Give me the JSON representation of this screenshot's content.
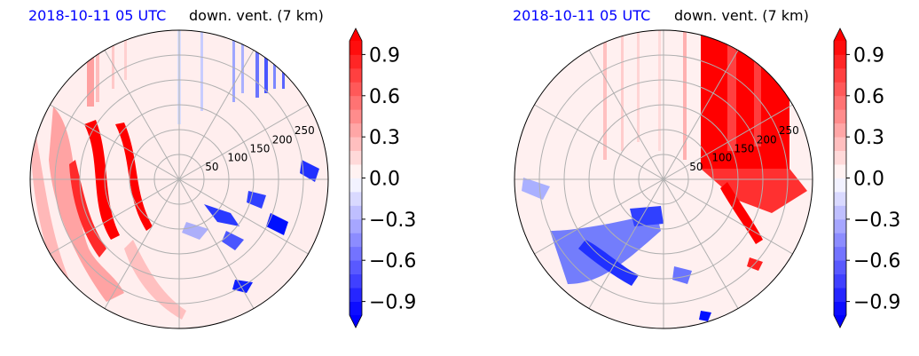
{
  "figure": {
    "panels": [
      {
        "date_title": "2018-10-11 05 UTC",
        "var_title": "down. vent. (7 km)"
      },
      {
        "date_title": "2018-10-11 05 UTC",
        "var_title": "down. vent. (7 km)"
      }
    ]
  },
  "colors": {
    "date_title": "#0000ff",
    "positive": "#ff0000",
    "negative": "#0000ff",
    "neutral": "#ffffff",
    "grid": "#b0b0b0",
    "frame": "#000000"
  },
  "chart_data": [
    {
      "type": "heatmap",
      "projection": "polar",
      "title_left": "2018-10-11 05 UTC",
      "title_right": "down. vent. (7 km)",
      "radial_ticks": [
        50,
        100,
        150,
        200,
        250
      ],
      "radial_lim": [
        0,
        300
      ],
      "angular_grid_deg": 30,
      "grid": true,
      "colorbar": {
        "ticks": [
          -0.9,
          -0.6,
          -0.3,
          0.0,
          0.3,
          0.6,
          0.9
        ],
        "tick_labels": [
          "−0.9",
          "−0.6",
          "−0.3",
          "0.0",
          "0.3",
          "0.6",
          "0.9"
        ],
        "range": [
          -1.0,
          1.0
        ],
        "extend": "both",
        "levels": 20,
        "cmap": "bwr"
      }
    },
    {
      "type": "heatmap",
      "projection": "polar",
      "title_left": "2018-10-11 05 UTC",
      "title_right": "down. vent. (7 km)",
      "radial_ticks": [
        50,
        100,
        150,
        200,
        250
      ],
      "radial_lim": [
        0,
        300
      ],
      "angular_grid_deg": 30,
      "grid": true,
      "colorbar": {
        "ticks": [
          -0.9,
          -0.6,
          -0.3,
          0.0,
          0.3,
          0.6,
          0.9
        ],
        "tick_labels": [
          "−0.9",
          "−0.6",
          "−0.3",
          "0.0",
          "0.3",
          "0.6",
          "0.9"
        ],
        "range": [
          -1.0,
          1.0
        ],
        "extend": "both",
        "levels": 20,
        "cmap": "bwr"
      }
    }
  ]
}
